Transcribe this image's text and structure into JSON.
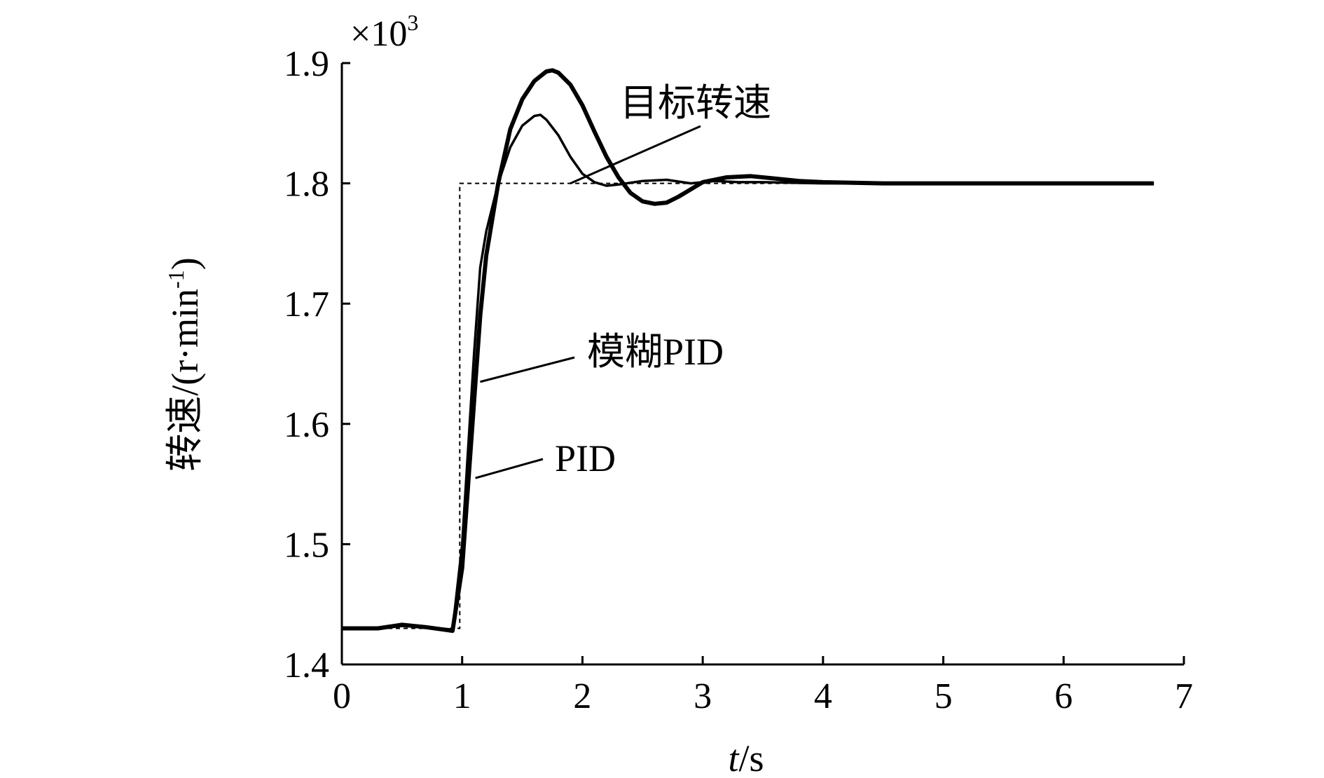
{
  "chart_data": {
    "type": "line",
    "x_ticks": [
      "0",
      "1",
      "2",
      "3",
      "4",
      "5",
      "6",
      "7"
    ],
    "y_ticks": [
      "1.4",
      "1.5",
      "1.6",
      "1.7",
      "1.8",
      "1.9"
    ],
    "xlim": [
      0,
      7
    ],
    "ylim": [
      1.4,
      1.9
    ],
    "y_multiplier": "×10",
    "y_multiplier_exp": "3",
    "xlabel_italic": "t",
    "xlabel_rest": "/s",
    "ylabel_main": "转速/(r·min",
    "ylabel_sup": "-1",
    "ylabel_end": ")",
    "grid": false,
    "series": [
      {
        "name": "目标转速",
        "style": "dashed",
        "x": [
          0,
          0.98,
          0.98,
          6.75
        ],
        "y": [
          1.43,
          1.43,
          1.8,
          1.8
        ]
      },
      {
        "name": "模糊PID",
        "style": "thin",
        "x": [
          0,
          0.3,
          0.5,
          0.7,
          0.92,
          1.0,
          1.05,
          1.1,
          1.15,
          1.2,
          1.3,
          1.4,
          1.5,
          1.6,
          1.65,
          1.7,
          1.8,
          1.9,
          2.0,
          2.1,
          2.2,
          2.3,
          2.5,
          2.7,
          2.9,
          3.1,
          3.3,
          3.5,
          4.0,
          5.0,
          6.0,
          6.75
        ],
        "y": [
          1.43,
          1.43,
          1.432,
          1.431,
          1.429,
          1.5,
          1.58,
          1.66,
          1.73,
          1.76,
          1.8,
          1.83,
          1.848,
          1.856,
          1.857,
          1.853,
          1.84,
          1.822,
          1.808,
          1.801,
          1.798,
          1.799,
          1.802,
          1.803,
          1.8,
          1.802,
          1.801,
          1.801,
          1.8,
          1.8,
          1.8,
          1.8
        ]
      },
      {
        "name": "PID",
        "style": "thick",
        "x": [
          0,
          0.3,
          0.5,
          0.7,
          0.92,
          1.0,
          1.05,
          1.1,
          1.15,
          1.2,
          1.3,
          1.4,
          1.5,
          1.6,
          1.7,
          1.75,
          1.8,
          1.9,
          2.0,
          2.1,
          2.2,
          2.3,
          2.4,
          2.5,
          2.6,
          2.7,
          2.8,
          2.9,
          3.0,
          3.2,
          3.4,
          3.6,
          3.8,
          4.0,
          4.5,
          5.0,
          6.0,
          6.75
        ],
        "y": [
          1.43,
          1.43,
          1.433,
          1.431,
          1.428,
          1.48,
          1.55,
          1.62,
          1.69,
          1.74,
          1.8,
          1.845,
          1.87,
          1.885,
          1.893,
          1.894,
          1.892,
          1.882,
          1.865,
          1.843,
          1.822,
          1.805,
          1.792,
          1.785,
          1.783,
          1.784,
          1.789,
          1.795,
          1.801,
          1.805,
          1.806,
          1.804,
          1.802,
          1.801,
          1.8,
          1.8,
          1.8,
          1.8
        ]
      }
    ],
    "annotations": [
      {
        "text": "目标转速",
        "series": "目标转速"
      },
      {
        "text": "模糊PID",
        "series": "模糊PID"
      },
      {
        "text": "PID",
        "series": "PID"
      }
    ]
  }
}
